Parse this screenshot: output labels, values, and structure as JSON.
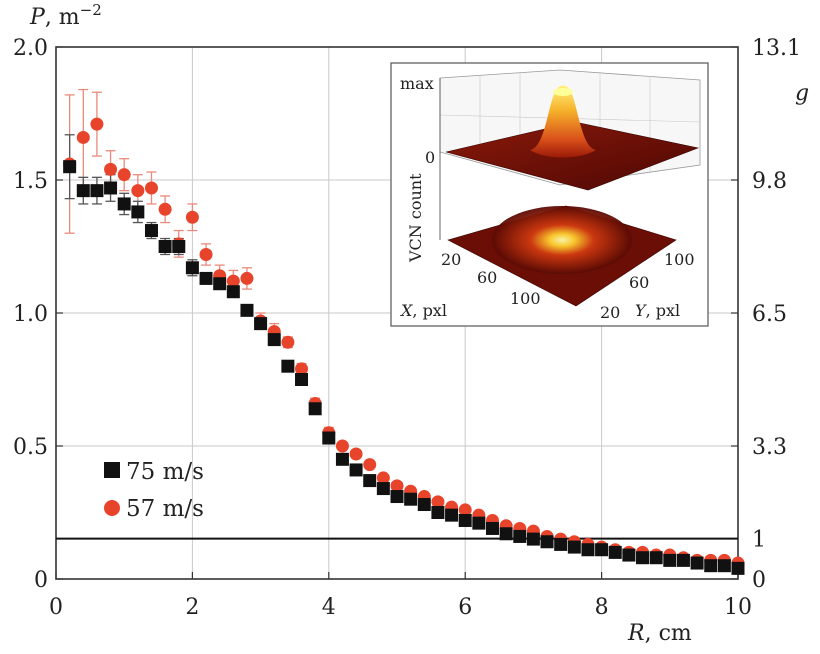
{
  "chart_data": {
    "type": "scatter",
    "xlabel_var": "R",
    "xlabel_unit": ", cm",
    "ylabel_var": "P",
    "ylabel_unit": ", m",
    "ylabel_exp": "−2",
    "y2label": "g",
    "xlim": [
      0,
      10
    ],
    "ylim": [
      0,
      2.0
    ],
    "x_ticks": [
      0,
      2,
      4,
      6,
      8,
      10
    ],
    "x_tick_labels": [
      "0",
      "2",
      "4",
      "6",
      "8",
      "10"
    ],
    "y_ticks": [
      0,
      0.5,
      1.0,
      1.5,
      2.0
    ],
    "y_tick_labels": [
      "0",
      "0.5",
      "1.0",
      "1.5",
      "2.0"
    ],
    "y2_ticks": [
      0,
      0.152,
      0.5,
      1.0,
      1.5,
      2.0
    ],
    "y2_tick_labels": [
      "0",
      "1",
      "3.3",
      "6.5",
      "9.8",
      "13.1"
    ],
    "reference_line_y": 0.152,
    "series": [
      {
        "name": "75 m/s",
        "marker": "square",
        "color": "#111111",
        "x": [
          0.2,
          0.4,
          0.6,
          0.8,
          1.0,
          1.2,
          1.4,
          1.6,
          1.8,
          2.0,
          2.2,
          2.4,
          2.6,
          2.8,
          3.0,
          3.2,
          3.4,
          3.6,
          3.8,
          4.0,
          4.2,
          4.4,
          4.6,
          4.8,
          5.0,
          5.2,
          5.4,
          5.6,
          5.8,
          6.0,
          6.2,
          6.4,
          6.6,
          6.8,
          7.0,
          7.2,
          7.4,
          7.6,
          7.8,
          8.0,
          8.2,
          8.4,
          8.6,
          8.8,
          9.0,
          9.2,
          9.4,
          9.6,
          9.8,
          10.0
        ],
        "y": [
          1.55,
          1.46,
          1.46,
          1.47,
          1.41,
          1.38,
          1.31,
          1.25,
          1.25,
          1.17,
          1.13,
          1.11,
          1.08,
          1.01,
          0.96,
          0.9,
          0.8,
          0.75,
          0.64,
          0.53,
          0.45,
          0.41,
          0.37,
          0.34,
          0.31,
          0.3,
          0.28,
          0.25,
          0.24,
          0.22,
          0.21,
          0.19,
          0.17,
          0.16,
          0.15,
          0.14,
          0.13,
          0.12,
          0.11,
          0.11,
          0.1,
          0.09,
          0.08,
          0.08,
          0.07,
          0.07,
          0.06,
          0.05,
          0.05,
          0.04
        ],
        "err": [
          0.12,
          0.05,
          0.05,
          0.05,
          0.04,
          0.04,
          0.03,
          0.03,
          0.03,
          0.03,
          0.02,
          0.02,
          0.02,
          0.02,
          0.02,
          0.02,
          0.02,
          0.02,
          0.01,
          0.01,
          0.01,
          0.01,
          0.01,
          0.01,
          0.01,
          0.01,
          0.01,
          0.01,
          0.01,
          0.01,
          0.01,
          0.01,
          0.01,
          0.01,
          0.01,
          0.01,
          0.01,
          0.01,
          0.01,
          0.01,
          0.01,
          0.01,
          0.01,
          0.01,
          0.01,
          0.01,
          0.01,
          0.01,
          0.01,
          0.01
        ]
      },
      {
        "name": "57 m/s",
        "marker": "circle",
        "color": "#e8442b",
        "x": [
          0.2,
          0.4,
          0.6,
          0.8,
          1.0,
          1.2,
          1.4,
          1.6,
          1.8,
          2.0,
          2.2,
          2.4,
          2.6,
          2.8,
          3.0,
          3.2,
          3.4,
          3.6,
          3.8,
          4.0,
          4.2,
          4.4,
          4.6,
          4.8,
          5.0,
          5.2,
          5.4,
          5.6,
          5.8,
          6.0,
          6.2,
          6.4,
          6.6,
          6.8,
          7.0,
          7.2,
          7.4,
          7.6,
          7.8,
          8.0,
          8.2,
          8.4,
          8.6,
          8.8,
          9.0,
          9.2,
          9.4,
          9.6,
          9.8,
          10.0
        ],
        "y": [
          1.56,
          1.66,
          1.71,
          1.54,
          1.52,
          1.46,
          1.47,
          1.39,
          1.26,
          1.36,
          1.22,
          1.14,
          1.12,
          1.13,
          0.97,
          0.93,
          0.89,
          0.79,
          0.66,
          0.55,
          0.5,
          0.47,
          0.43,
          0.38,
          0.35,
          0.33,
          0.31,
          0.29,
          0.27,
          0.26,
          0.24,
          0.22,
          0.2,
          0.19,
          0.18,
          0.16,
          0.15,
          0.14,
          0.13,
          0.12,
          0.11,
          0.1,
          0.1,
          0.09,
          0.09,
          0.08,
          0.07,
          0.07,
          0.07,
          0.06
        ],
        "err": [
          0.26,
          0.18,
          0.12,
          0.07,
          0.06,
          0.06,
          0.06,
          0.05,
          0.05,
          0.05,
          0.04,
          0.04,
          0.04,
          0.04,
          0.03,
          0.03,
          0.02,
          0.02,
          0.02,
          0.02,
          0.01,
          0.01,
          0.01,
          0.01,
          0.01,
          0.01,
          0.01,
          0.01,
          0.01,
          0.01,
          0.01,
          0.01,
          0.01,
          0.01,
          0.01,
          0.01,
          0.01,
          0.01,
          0.01,
          0.01,
          0.01,
          0.01,
          0.01,
          0.01,
          0.01,
          0.01,
          0.01,
          0.01,
          0.01,
          0.01
        ]
      }
    ],
    "inset": {
      "type": "surface3d",
      "z_label": "VCN count",
      "z_tick_labels": [
        "max",
        "0"
      ],
      "x_axis_var": "X",
      "x_axis_unit": ", pxl",
      "y_axis_var": "Y",
      "y_axis_unit": ", pxl",
      "x_tick_labels": [
        "20",
        "60",
        "100"
      ],
      "y_tick_labels": [
        "20",
        "60",
        "100"
      ]
    }
  }
}
